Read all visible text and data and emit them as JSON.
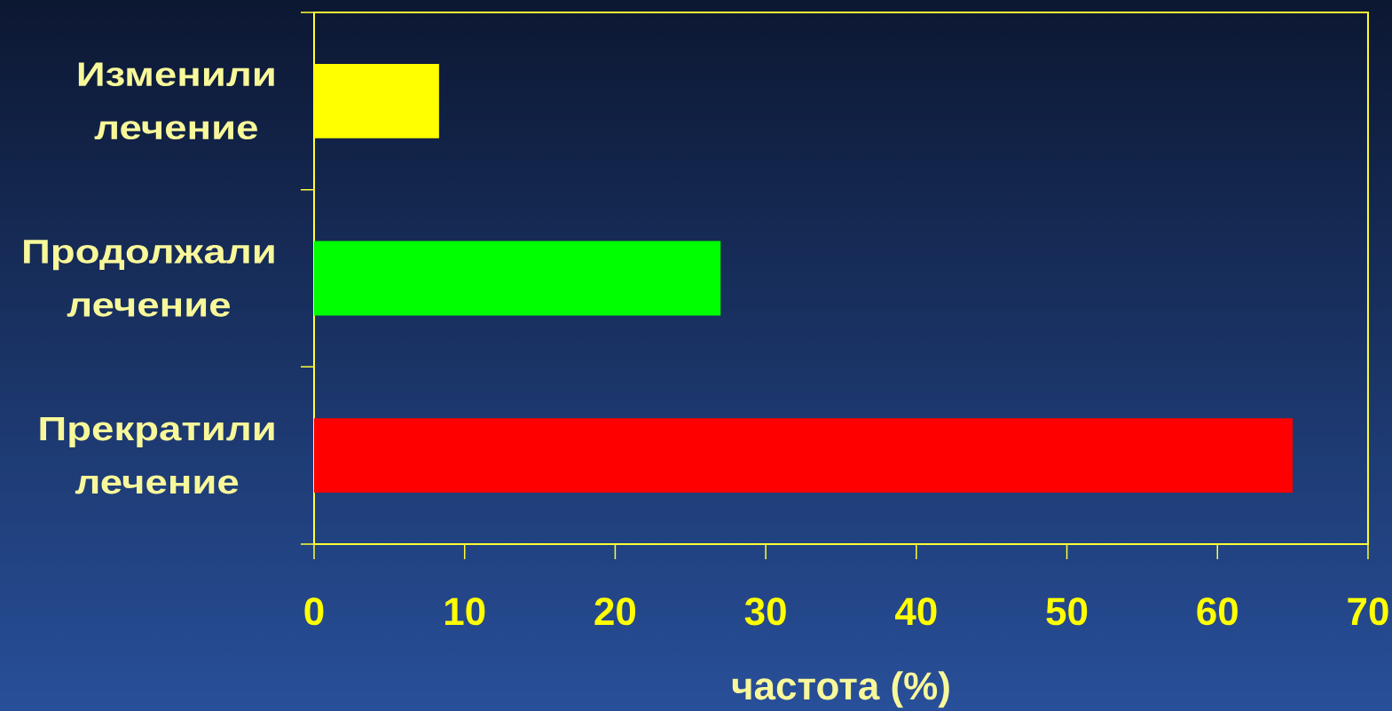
{
  "chart_data": {
    "type": "bar",
    "orientation": "horizontal",
    "categories": [
      "Изменили лечение",
      "Продолжали лечение",
      "Прекратили лечение"
    ],
    "values": [
      8.3,
      27,
      65
    ],
    "colors": [
      "#ffff00",
      "#00ff00",
      "#ff0000"
    ],
    "xlabel": "частота (%)",
    "xlim": [
      0,
      70
    ],
    "xticks": [
      0,
      10,
      20,
      30,
      40,
      50,
      60,
      70
    ]
  }
}
